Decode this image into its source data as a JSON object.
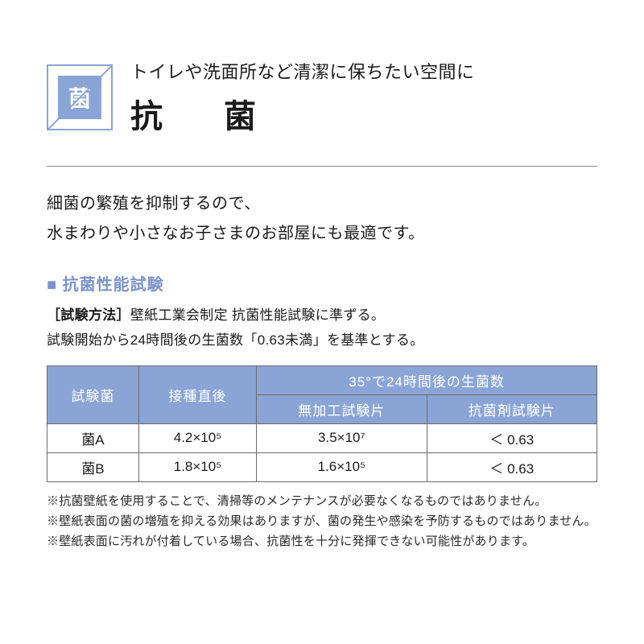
{
  "header": {
    "icon_char": "菌",
    "subtitle": "トイレや洗面所など清潔に保ちたい空間に",
    "title": "抗　菌"
  },
  "lead": {
    "line1": "細菌の繁殖を抑制するので、",
    "line2": "水まわりや小さなお子さまのお部屋にも最適です。"
  },
  "section": {
    "heading": "■ 抗菌性能試験",
    "method_label": "［試験方法］",
    "method_text": "壁紙工業会制定 抗菌性能試験に準ずる。",
    "method_note": "試験開始から24時間後の生菌数「0.63未満」を基準とする。"
  },
  "table": {
    "headers": {
      "col1": "試験菌",
      "col2": "接種直後",
      "col3_top": "35°で24時間後の生菌数",
      "col3_a": "無加工試験片",
      "col3_b": "抗菌剤試験片"
    },
    "rows": [
      {
        "bacteria": "菌A",
        "initial": "4.2×10⁵",
        "untreated": "3.5×10⁷",
        "treated": "＜ 0.63"
      },
      {
        "bacteria": "菌B",
        "initial": "1.8×10⁵",
        "untreated": "1.6×10⁵",
        "treated": "＜ 0.63"
      }
    ]
  },
  "notes": {
    "n1": "※抗菌壁紙を使用することで、清掃等のメンテナンスが必要なくなるものではありません。",
    "n2": "※壁紙表面の菌の増殖を抑える効果はありますが、菌の発生や感染を予防するものではありません。",
    "n3": "※壁紙表面に汚れが付着している場合、抗菌性を十分に発揮できない可能性があります。"
  },
  "colors": {
    "accent": "#8aa4d6",
    "text": "#1a1a1a",
    "border": "#6b6b6b"
  }
}
